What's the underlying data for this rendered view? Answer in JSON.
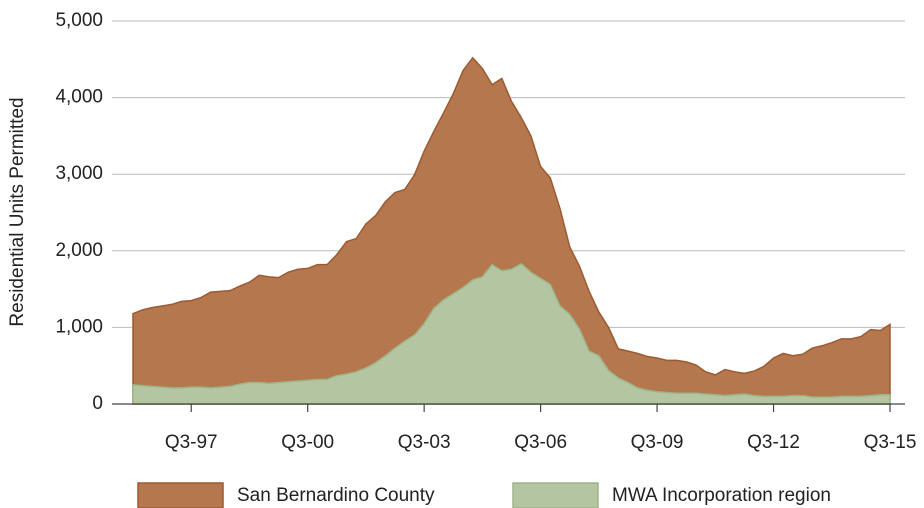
{
  "chart_data": {
    "type": "area",
    "y_label": "Residential Units Permitted",
    "categories": [
      null,
      null,
      null,
      null,
      null,
      null,
      "Q3-97",
      null,
      null,
      null,
      null,
      null,
      null,
      null,
      null,
      null,
      null,
      null,
      "Q3-00",
      null,
      null,
      null,
      null,
      null,
      null,
      null,
      null,
      null,
      null,
      null,
      "Q3-03",
      null,
      null,
      null,
      null,
      null,
      null,
      null,
      null,
      null,
      null,
      null,
      "Q3-06",
      null,
      null,
      null,
      null,
      null,
      null,
      null,
      null,
      null,
      null,
      null,
      "Q3-09",
      null,
      null,
      null,
      null,
      null,
      null,
      null,
      null,
      null,
      null,
      null,
      "Q3-12",
      null,
      null,
      null,
      null,
      null,
      null,
      null,
      null,
      null,
      null,
      null,
      "Q3-15"
    ],
    "series": [
      {
        "name": "San Bernardino County",
        "color": "#b5774d",
        "stroke": "#9c5a32",
        "values": [
          1180,
          1230,
          1260,
          1280,
          1300,
          1340,
          1350,
          1390,
          1460,
          1470,
          1480,
          1540,
          1590,
          1680,
          1660,
          1650,
          1720,
          1760,
          1770,
          1820,
          1820,
          1950,
          2120,
          2160,
          2350,
          2460,
          2640,
          2760,
          2800,
          2990,
          3300,
          3560,
          3800,
          4050,
          4350,
          4520,
          4380,
          4170,
          4250,
          3950,
          3740,
          3500,
          3100,
          2950,
          2550,
          2050,
          1800,
          1470,
          1200,
          1000,
          720,
          690,
          660,
          620,
          600,
          570,
          570,
          550,
          510,
          420,
          380,
          450,
          420,
          400,
          430,
          490,
          600,
          660,
          630,
          650,
          730,
          760,
          800,
          850,
          850,
          880,
          970,
          960,
          1040
        ]
      },
      {
        "name": "MWA Incorporation region",
        "color": "#b4c5a2",
        "stroke": "#9db488",
        "values": [
          250,
          240,
          230,
          220,
          210,
          210,
          220,
          220,
          210,
          220,
          230,
          260,
          280,
          280,
          270,
          280,
          290,
          300,
          310,
          320,
          320,
          370,
          390,
          420,
          470,
          540,
          630,
          730,
          820,
          900,
          1050,
          1250,
          1360,
          1440,
          1520,
          1620,
          1660,
          1820,
          1740,
          1760,
          1830,
          1720,
          1640,
          1560,
          1280,
          1170,
          980,
          690,
          630,
          440,
          340,
          280,
          210,
          180,
          160,
          150,
          140,
          140,
          140,
          130,
          120,
          110,
          120,
          130,
          110,
          100,
          100,
          100,
          110,
          110,
          90,
          90,
          90,
          100,
          100,
          100,
          110,
          120,
          120
        ]
      }
    ],
    "ylim": [
      0,
      5000
    ],
    "yticks": [
      0,
      {
        "value": 1000,
        "label": "1,000"
      },
      {
        "value": 2000,
        "label": "2,000"
      },
      {
        "value": 3000,
        "label": "3,000"
      },
      {
        "value": 4000,
        "label": "4,000"
      },
      {
        "value": 5000,
        "label": "5,000"
      }
    ],
    "grid": true,
    "legend": "bottom"
  }
}
